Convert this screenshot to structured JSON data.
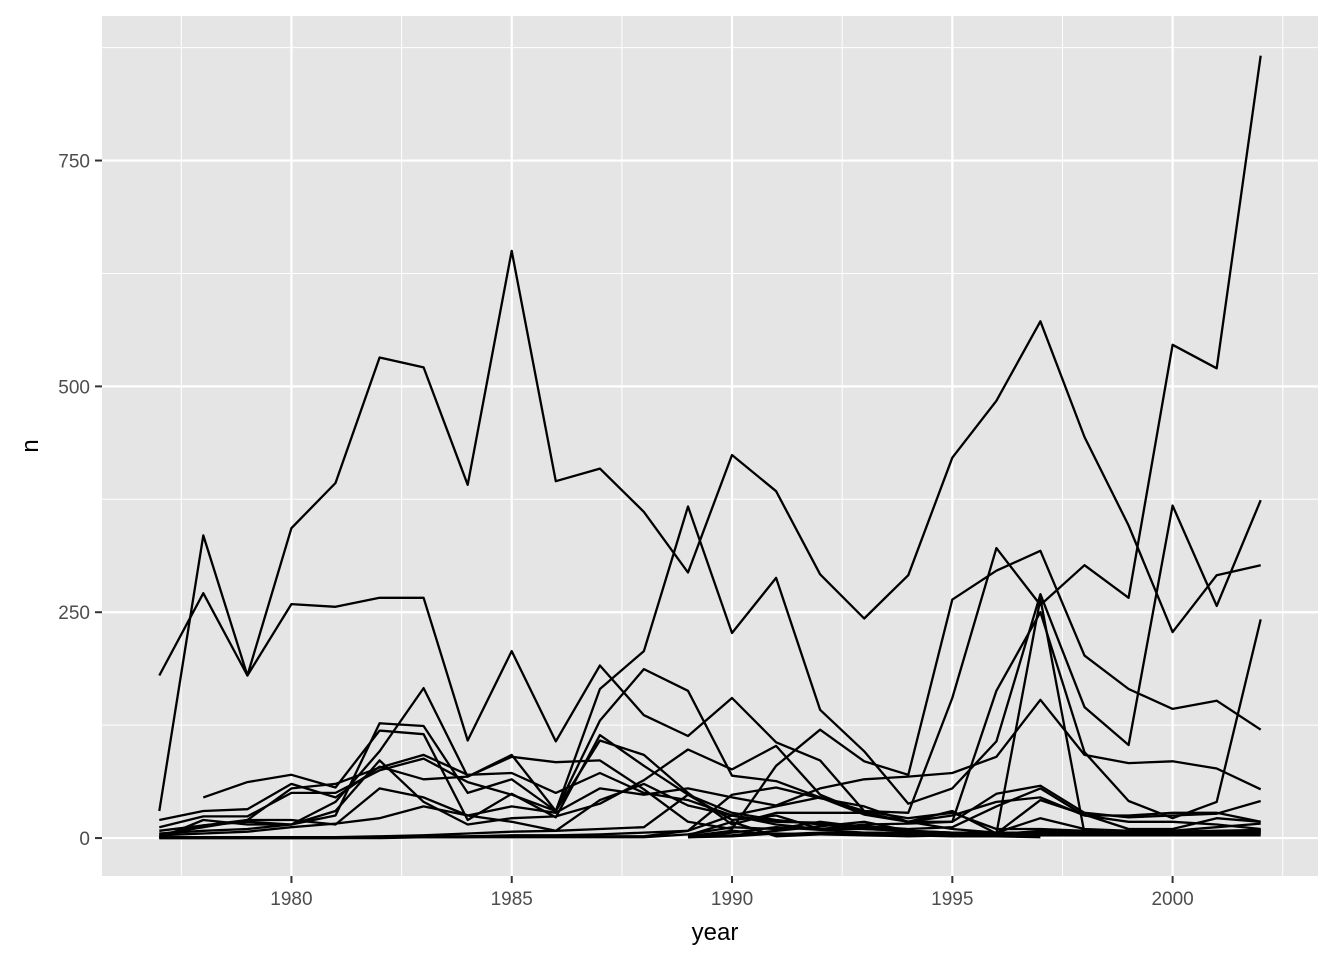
{
  "chart_data": {
    "type": "line",
    "title": "",
    "xlabel": "year",
    "ylabel": "n",
    "xlim": [
      1975.7,
      2003.3
    ],
    "ylim": [
      -42,
      910
    ],
    "x_ticks": [
      1980,
      1985,
      1990,
      1995,
      2000
    ],
    "x_tick_labels": [
      "1980",
      "1985",
      "1990",
      "1995",
      "2000"
    ],
    "y_ticks": [
      0,
      250,
      500,
      750
    ],
    "y_tick_labels": [
      "0",
      "250",
      "500",
      "750"
    ],
    "grid": true,
    "legend": "none",
    "colors": {
      "panel": "#e5e5e5",
      "grid": "#ffffff",
      "line": "#000000",
      "tick": "#333333",
      "tick_text": "#4d4d4d"
    },
    "series": [
      {
        "x": [
          1977,
          1978,
          1979,
          1980,
          1981,
          1982,
          1983,
          1984,
          1985,
          1986,
          1987,
          1988,
          1989,
          1990,
          1991,
          1992,
          1993,
          1994,
          1995,
          1996,
          1997,
          1998,
          1999,
          2000,
          2001,
          2002
        ],
        "values": [
          30,
          335,
          180,
          343,
          393,
          532,
          521,
          391,
          650,
          395,
          409,
          361,
          294,
          424,
          384,
          292,
          243,
          291,
          421,
          484,
          572,
          444,
          346,
          228,
          291,
          302
        ]
      },
      {
        "x": [
          1977,
          1978,
          1979,
          1980,
          1981,
          1982,
          1983,
          1984,
          1985,
          1986,
          1987,
          1988,
          1989,
          1990,
          1991,
          1992,
          1993,
          1994,
          1995,
          1996,
          1997,
          1998,
          1999,
          2000,
          2001,
          2002
        ],
        "values": [
          180,
          271,
          180,
          259,
          256,
          266,
          266,
          108,
          207,
          107,
          191,
          136,
          113,
          155,
          106,
          86,
          30,
          28,
          155,
          321,
          258,
          302,
          266,
          546,
          520,
          866
        ]
      },
      {
        "x": [
          1977,
          1978,
          1979,
          1980,
          1981,
          1982,
          1983,
          1984,
          1985,
          1986,
          1987,
          1988,
          1989,
          1990,
          1991,
          1992,
          1993,
          1994,
          1995,
          1996,
          1997,
          1998,
          1999,
          2000,
          2001,
          2002
        ],
        "values": [
          0,
          20,
          15,
          15,
          25,
          127,
          124,
          50,
          65,
          30,
          165,
          207,
          367,
          227,
          288,
          142,
          96,
          38,
          55,
          107,
          270,
          145,
          103,
          368,
          257,
          374
        ]
      },
      {
        "x": [
          1977,
          1978,
          1979,
          1980,
          1981,
          1982,
          1983,
          1984,
          1985,
          1986,
          1987,
          1988,
          1989,
          1990,
          1991,
          1992,
          1993,
          1994,
          1995,
          1996,
          1997,
          1998,
          1999,
          2000,
          2001,
          2002
        ],
        "values": [
          2,
          14,
          18,
          15,
          40,
          96,
          166,
          68,
          90,
          84,
          86,
          54,
          18,
          10,
          80,
          120,
          85,
          70,
          264,
          296,
          318,
          202,
          165,
          143,
          152,
          120
        ]
      },
      {
        "x": [
          1977,
          1978,
          1979,
          1980,
          1981,
          1982,
          1983,
          1984,
          1985,
          1986,
          1987,
          1988,
          1989,
          1990,
          1991,
          1992,
          1993,
          1994,
          1995,
          1996,
          1997,
          1998,
          1999,
          2000,
          2001,
          2002
        ],
        "values": [
          20,
          30,
          32,
          60,
          45,
          79,
          65,
          68,
          92,
          30,
          130,
          187,
          163,
          69,
          63,
          45,
          26,
          18,
          18,
          163,
          250,
          95,
          41,
          22,
          40,
          242
        ]
      },
      {
        "x": [
          1977,
          1978,
          1979,
          1980,
          1981,
          1982,
          1983,
          1984,
          1985,
          1986,
          1987,
          1988,
          1989,
          1990,
          1991,
          1992,
          1993,
          1994,
          1995,
          1996,
          1997,
          1998,
          1999,
          2000,
          2001,
          2002
        ],
        "values": [
          12,
          24,
          24,
          50,
          50,
          75,
          88,
          62,
          48,
          30,
          108,
          92,
          50,
          15,
          28,
          28,
          28,
          18,
          25,
          40,
          45,
          25,
          25,
          28,
          28,
          18
        ]
      },
      {
        "x": [
          1977,
          1978,
          1979,
          1980,
          1981,
          1982,
          1983,
          1984,
          1985,
          1986,
          1987,
          1988,
          1989,
          1990,
          1991,
          1992,
          1993,
          1994,
          1995,
          1996,
          1997,
          1998,
          1999,
          2000,
          2001,
          2002
        ],
        "values": [
          5,
          8,
          10,
          15,
          30,
          86,
          40,
          15,
          22,
          24,
          38,
          64,
          98,
          76,
          102,
          48,
          28,
          18,
          10,
          6,
          6,
          6,
          8,
          7,
          8,
          9
        ]
      },
      {
        "x": [
          1977,
          1978,
          1979,
          1980,
          1981,
          1982,
          1983,
          1984,
          1985,
          1986,
          1987,
          1988,
          1989,
          1990,
          1991,
          1992,
          1993,
          1994,
          1995,
          1996,
          1997,
          1998,
          1999,
          2000,
          2001,
          2002
        ],
        "values": [
          4,
          12,
          20,
          55,
          60,
          78,
          92,
          70,
          72,
          50,
          72,
          50,
          42,
          25,
          15,
          10,
          10,
          8,
          5,
          5,
          42,
          26,
          10,
          10,
          22,
          18
        ]
      },
      {
        "x": [
          1978,
          1979,
          1980,
          1981,
          1982,
          1983,
          1984,
          1985,
          1986,
          1987,
          1988,
          1989,
          1990,
          1991,
          1992,
          1993,
          1994,
          1995,
          1996,
          1997,
          1998,
          1999,
          2000,
          2001,
          2002
        ],
        "values": [
          45,
          62,
          70,
          56,
          119,
          115,
          20,
          49,
          23,
          114,
          80,
          48,
          20,
          25,
          10,
          15,
          16,
          18,
          49,
          58,
          28,
          23,
          25,
          27,
          41
        ]
      },
      {
        "x": [
          1977,
          1978,
          1979,
          1980,
          1981,
          1982,
          1983,
          1984,
          1985,
          1986,
          1987,
          1988,
          1989,
          1990,
          1991,
          1992,
          1993,
          1994,
          1995,
          1996,
          1997,
          1998,
          1999,
          2000,
          2001,
          2002
        ],
        "values": [
          8,
          14,
          20,
          20,
          15,
          55,
          45,
          25,
          35,
          28,
          55,
          48,
          55,
          45,
          36,
          55,
          65,
          68,
          72,
          90,
          153,
          92,
          83,
          85,
          77,
          54
        ]
      },
      {
        "x": [
          1977,
          1978,
          1979,
          1980,
          1981,
          1982,
          1983,
          1984,
          1985,
          1986,
          1987,
          1988,
          1989,
          1990,
          1991,
          1992,
          1993,
          1994,
          1995,
          1996,
          1997,
          1998,
          1999,
          2000,
          2001,
          2002
        ],
        "values": [
          3,
          5,
          7,
          12,
          16,
          22,
          35,
          25,
          18,
          8,
          42,
          60,
          36,
          25,
          18,
          17,
          13,
          10,
          12,
          35,
          55,
          25,
          18,
          18,
          15,
          10
        ]
      },
      {
        "x": [
          1977,
          1978,
          1979,
          1980,
          1981,
          1982,
          1983,
          1984,
          1985,
          1986,
          1987,
          1988,
          1989,
          1990,
          1991,
          1992,
          1993,
          1994,
          1995,
          1996,
          1997,
          1998,
          1999,
          2000,
          2001,
          2002
        ],
        "values": [
          1,
          1,
          1,
          1,
          1,
          2,
          3,
          5,
          7,
          8,
          10,
          12,
          48,
          28,
          20,
          15,
          10,
          8,
          6,
          6,
          22,
          10,
          8,
          8,
          12,
          16
        ]
      },
      {
        "x": [
          1977,
          1978,
          1979,
          1980,
          1981,
          1982,
          1983,
          1984,
          1985,
          1986,
          1987,
          1988,
          1989,
          1990,
          1991,
          1992,
          1993,
          1994,
          1995,
          1996,
          1997,
          1998,
          1999,
          2000,
          2001,
          2002
        ],
        "values": [
          1,
          1,
          1,
          1,
          1,
          1,
          2,
          2,
          3,
          3,
          4,
          6,
          8,
          48,
          56,
          44,
          35,
          18,
          30,
          5,
          265,
          5,
          4,
          3,
          4,
          5
        ]
      },
      {
        "x": [
          1977,
          1978,
          1979,
          1980,
          1981,
          1982,
          1983,
          1984,
          1985,
          1986,
          1987,
          1988,
          1989,
          1990,
          1991,
          1992,
          1993,
          1994,
          1995,
          1996,
          1997,
          1998,
          1999,
          2000,
          2001,
          2002
        ],
        "values": [
          0,
          0,
          0,
          0,
          0,
          1,
          1,
          1,
          2,
          2,
          2,
          2,
          8,
          25,
          35,
          45,
          30,
          22,
          28,
          10,
          10,
          8,
          6,
          5,
          6,
          8
        ]
      },
      {
        "x": [
          1977,
          1978,
          1979,
          1980,
          1981,
          1982,
          1983,
          1984,
          1985,
          1986,
          1987,
          1988,
          1989,
          1990,
          1991,
          1992,
          1993,
          1994,
          1995,
          1996,
          1997,
          1998,
          1999,
          2000,
          2001,
          2002
        ],
        "values": [
          0,
          0,
          0,
          0,
          0,
          0,
          1,
          1,
          1,
          1,
          1,
          1,
          4,
          12,
          10,
          18,
          12,
          8,
          6,
          5,
          6,
          5,
          5,
          6,
          7,
          8
        ]
      },
      {
        "x": [
          1989,
          1990,
          1991,
          1992,
          1993,
          1994,
          1995,
          1996,
          1997,
          1998,
          1999,
          2000,
          2001,
          2002
        ],
        "values": [
          2,
          8,
          4,
          6,
          5,
          4,
          4,
          4,
          4,
          4,
          5,
          5,
          5,
          6
        ]
      },
      {
        "x": [
          1989,
          1990,
          1991,
          1992,
          1993,
          1994,
          1995,
          1996,
          1997,
          1998,
          1999,
          2000,
          2001,
          2002
        ],
        "values": [
          1,
          6,
          12,
          9,
          6,
          6,
          6,
          6,
          6,
          6,
          6,
          6,
          6,
          6
        ]
      },
      {
        "x": [
          1989,
          1990,
          1991,
          1992,
          1993,
          1994,
          1995,
          1996,
          1997
        ],
        "values": [
          3,
          18,
          2,
          4,
          4,
          3,
          2,
          2,
          1
        ]
      },
      {
        "x": [
          1989,
          1990,
          1991,
          1992,
          1993,
          1994,
          1995,
          1996,
          1997,
          1998,
          1999,
          2000,
          2001,
          2002
        ],
        "values": [
          1,
          3,
          8,
          13,
          18,
          8,
          3,
          4,
          8,
          6,
          4,
          5,
          6,
          9
        ]
      },
      {
        "x": [
          1989,
          1990,
          1991,
          1992,
          1993,
          1994,
          1995,
          1996,
          1997,
          1998,
          1999,
          2000,
          2001,
          2002
        ],
        "values": [
          1,
          2,
          5,
          4,
          3,
          2,
          3,
          3,
          3,
          3,
          3,
          3,
          3,
          3
        ]
      }
    ]
  }
}
